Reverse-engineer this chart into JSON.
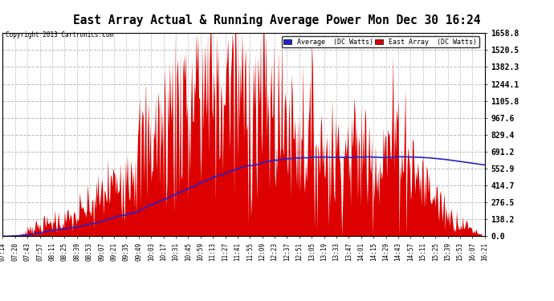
{
  "title": "East Array Actual & Running Average Power Mon Dec 30 16:24",
  "copyright": "Copyright 2013 Cartronics.com",
  "legend_avg": "Average  (DC Watts)",
  "legend_east": "East Array  (DC Watts)",
  "ylabel_right_values": [
    0.0,
    138.2,
    276.5,
    414.7,
    552.9,
    691.2,
    829.4,
    967.6,
    1105.8,
    1244.1,
    1382.3,
    1520.5,
    1658.8
  ],
  "ymax": 1658.8,
  "background_color": "#ffffff",
  "fill_color": "#dd0000",
  "avg_line_color": "#2222cc",
  "grid_color": "#bbbbbb",
  "title_fontsize": 11,
  "tick_labels": [
    "07:14",
    "07:28",
    "07:43",
    "07:57",
    "08:11",
    "08:25",
    "08:39",
    "08:53",
    "09:07",
    "09:21",
    "09:35",
    "09:49",
    "10:03",
    "10:17",
    "10:31",
    "10:45",
    "10:59",
    "11:13",
    "11:27",
    "11:41",
    "11:55",
    "12:09",
    "12:23",
    "12:37",
    "12:51",
    "13:05",
    "13:19",
    "13:33",
    "13:47",
    "14:01",
    "14:15",
    "14:29",
    "14:43",
    "14:57",
    "15:11",
    "15:25",
    "15:39",
    "15:53",
    "16:07",
    "16:21"
  ]
}
